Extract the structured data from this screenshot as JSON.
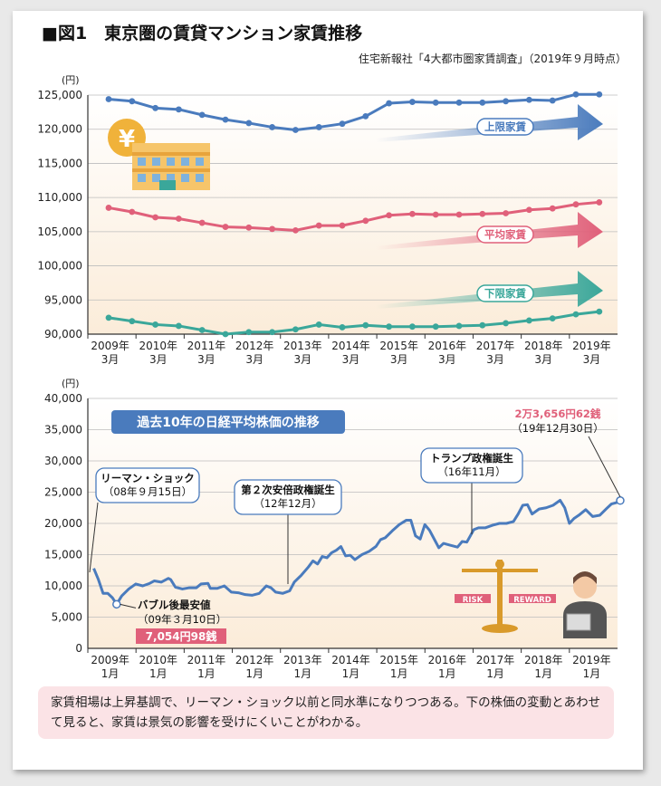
{
  "figure": {
    "title": "■図1　東京圏の賃貸マンション家賃推移",
    "source": "住宅新報社「4大都市圏家賃調査」（2019年９月時点）",
    "note": "家賃相場は上昇基調で、リーマン・ショック以前と同水準になりつつある。下の株価の変動とあわせて見ると、家賃は景気の影響を受けにくいことがわかる。"
  },
  "colors": {
    "upper": "#4a7bbd",
    "average": "#e0607a",
    "lower": "#3aa79a",
    "stock": "#4a7bbd",
    "label_box": "#4a7bbd",
    "highlight": "#e0607a"
  },
  "chart_data": [
    {
      "type": "line",
      "y_unit": "(円)",
      "ylim": [
        90000,
        125000
      ],
      "y_ticks": [
        "125,000",
        "120,000",
        "115,000",
        "110,000",
        "105,000",
        "100,000",
        "95,000",
        "90,000"
      ],
      "x_ticks": [
        [
          "2009年",
          "3月"
        ],
        [
          "2010年",
          "3月"
        ],
        [
          "2011年",
          "3月"
        ],
        [
          "2012年",
          "3月"
        ],
        [
          "2013年",
          "3月"
        ],
        [
          "2014年",
          "3月"
        ],
        [
          "2015年",
          "3月"
        ],
        [
          "2016年",
          "3月"
        ],
        [
          "2017年",
          "3月"
        ],
        [
          "2018年",
          "3月"
        ],
        [
          "2019年",
          "3月"
        ]
      ],
      "x": [
        2009.0,
        2009.5,
        2010.0,
        2010.5,
        2011.0,
        2011.5,
        2012.0,
        2012.5,
        2013.0,
        2013.5,
        2014.0,
        2014.5,
        2015.0,
        2015.5,
        2016.0,
        2016.5,
        2017.0,
        2017.5,
        2018.0,
        2018.5,
        2019.0,
        2019.5
      ],
      "series": [
        {
          "name": "上限家賃",
          "color_key": "upper",
          "values": [
            124400,
            124100,
            123100,
            122900,
            122100,
            121400,
            120900,
            120300,
            119900,
            120300,
            120800,
            121900,
            123800,
            124000,
            123900,
            123900,
            123900,
            124100,
            124300,
            124200,
            125100,
            125100
          ]
        },
        {
          "name": "平均家賃",
          "color_key": "average",
          "values": [
            108500,
            107900,
            107100,
            106900,
            106300,
            105700,
            105600,
            105400,
            105200,
            105900,
            105900,
            106600,
            107400,
            107600,
            107500,
            107500,
            107600,
            107700,
            108200,
            108400,
            109000,
            109300
          ]
        },
        {
          "name": "下限家賃",
          "color_key": "lower",
          "values": [
            92400,
            91900,
            91400,
            91200,
            90600,
            90000,
            90300,
            90300,
            90700,
            91400,
            91000,
            91300,
            91100,
            91100,
            91100,
            91200,
            91300,
            91600,
            92000,
            92300,
            92900,
            93300
          ]
        }
      ]
    },
    {
      "type": "line",
      "y_unit": "(円)",
      "ylim": [
        0,
        40000
      ],
      "y_ticks": [
        "40,000",
        "35,000",
        "30,000",
        "25,000",
        "20,000",
        "15,000",
        "10,000",
        "5,000",
        "0"
      ],
      "x_ticks": [
        [
          "2009年",
          "1月"
        ],
        [
          "2010年",
          "1月"
        ],
        [
          "2011年",
          "1月"
        ],
        [
          "2012年",
          "1月"
        ],
        [
          "2013年",
          "1月"
        ],
        [
          "2014年",
          "1月"
        ],
        [
          "2015年",
          "1月"
        ],
        [
          "2016年",
          "1月"
        ],
        [
          "2017年",
          "1月"
        ],
        [
          "2018年",
          "1月"
        ],
        [
          "2019年",
          "1月"
        ]
      ],
      "title_box": "過去10年の日経平均株価の推移",
      "series": [
        {
          "name": "日経平均株価",
          "color_key": "stock",
          "x": [
            2008.7,
            2008.8,
            2008.9,
            2009.0,
            2009.1,
            2009.19,
            2009.3,
            2009.45,
            2009.6,
            2009.75,
            2009.9,
            2010.0,
            2010.15,
            2010.3,
            2010.35,
            2010.45,
            2010.6,
            2010.75,
            2010.9,
            2011.0,
            2011.15,
            2011.2,
            2011.35,
            2011.5,
            2011.65,
            2011.8,
            2011.95,
            2012.1,
            2012.25,
            2012.4,
            2012.5,
            2012.6,
            2012.75,
            2012.9,
            2013.0,
            2013.15,
            2013.3,
            2013.4,
            2013.5,
            2013.6,
            2013.7,
            2013.8,
            2013.9,
            2014.0,
            2014.1,
            2014.2,
            2014.3,
            2014.45,
            2014.6,
            2014.75,
            2014.85,
            2014.95,
            2015.1,
            2015.25,
            2015.4,
            2015.5,
            2015.6,
            2015.7,
            2015.8,
            2015.9,
            2016.0,
            2016.1,
            2016.2,
            2016.35,
            2016.5,
            2016.6,
            2016.7,
            2016.85,
            2016.95,
            2017.1,
            2017.25,
            2017.4,
            2017.55,
            2017.7,
            2017.8,
            2017.9,
            2018.0,
            2018.1,
            2018.25,
            2018.4,
            2018.55,
            2018.7,
            2018.8,
            2018.9,
            2019.0,
            2019.1,
            2019.25,
            2019.4,
            2019.55,
            2019.7,
            2019.8,
            2019.9,
            2019.99
          ],
          "values": [
            12800,
            11000,
            8800,
            8800,
            8100,
            7054,
            8400,
            9500,
            10300,
            10000,
            10400,
            10800,
            10600,
            11200,
            11000,
            9800,
            9500,
            9700,
            9700,
            10300,
            10400,
            9600,
            9600,
            10000,
            9000,
            8900,
            8600,
            8500,
            8800,
            10000,
            9700,
            9000,
            8800,
            9200,
            10600,
            11700,
            13000,
            14000,
            13500,
            14700,
            14500,
            15300,
            15700,
            16300,
            14800,
            14900,
            14200,
            15000,
            15500,
            16300,
            17400,
            17700,
            18800,
            19800,
            20500,
            20500,
            18000,
            17500,
            19800,
            18900,
            17500,
            16100,
            16800,
            16500,
            16200,
            17100,
            17000,
            19000,
            19300,
            19300,
            19700,
            20000,
            20000,
            20300,
            21500,
            22900,
            23000,
            21500,
            22300,
            22500,
            22900,
            23700,
            22500,
            20000,
            20800,
            21300,
            22200,
            21100,
            21300,
            22400,
            23100,
            23300,
            23656
          ]
        }
      ],
      "annotations": [
        {
          "key": "lehman",
          "title": "リーマン・ショック",
          "date": "（08年９月15日）"
        },
        {
          "key": "abe",
          "title": "第２次安倍政権誕生",
          "date": "（12年12月）"
        },
        {
          "key": "trump",
          "title": "トランプ政権誕生",
          "date": "（16年11月）"
        },
        {
          "key": "bottom",
          "title": "バブル後最安値",
          "date": "（09年３月10日）",
          "value_label": "7,054円98銭"
        },
        {
          "key": "latest",
          "title": "2万3,656円62銭",
          "date": "（19年12月30日）"
        }
      ],
      "icon_labels": {
        "risk": "RISK",
        "reward": "REWARD"
      }
    }
  ]
}
